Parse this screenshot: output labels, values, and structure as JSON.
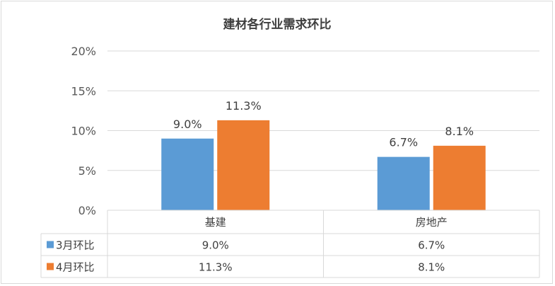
{
  "chart_data": {
    "type": "bar",
    "title": "建材各行业需求环比",
    "categories": [
      "基建",
      "房地产"
    ],
    "series": [
      {
        "name": "3月环比",
        "values": [
          9.0,
          6.7
        ],
        "labels": [
          "9.0%",
          "6.7%"
        ],
        "color": "#5b9bd5"
      },
      {
        "name": "4月环比",
        "values": [
          11.3,
          8.1
        ],
        "labels": [
          "11.3%",
          "8.1%"
        ],
        "color": "#ed7d31"
      }
    ],
    "y_ticks": [
      "0%",
      "5%",
      "10%",
      "15%",
      "20%"
    ],
    "ylim": [
      0,
      20
    ],
    "grid": true,
    "legend": "data-table",
    "gridline_color": "#d9d9d9"
  }
}
